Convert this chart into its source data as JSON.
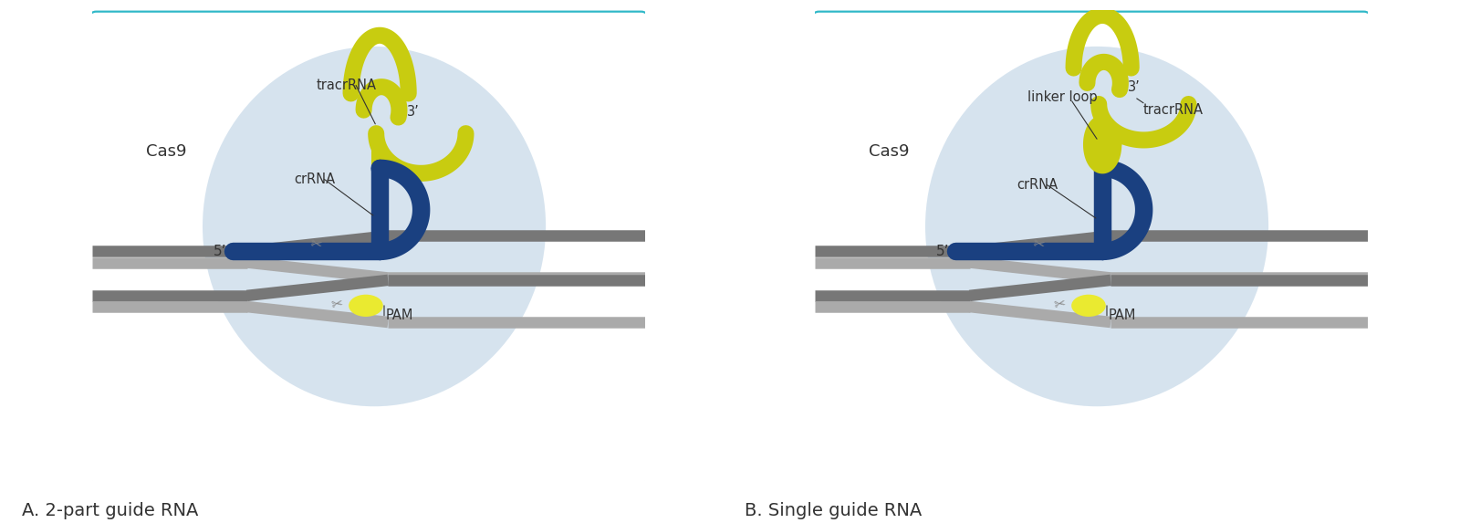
{
  "panel_A_title": "A. 2-part guide RNA",
  "panel_B_title": "B. Single guide RNA",
  "cas9_label": "Cas9",
  "tracr_label_A": "tracrRNA",
  "cr_label_A": "crRNA",
  "five_prime": "5’",
  "three_prime": "3’",
  "pam_label": "PAM",
  "linker_label": "linker loop",
  "tracr_label_B": "tracrRNA",
  "cr_label_B": "crRNA",
  "blob_color": "#c5d8e8",
  "dna_color": "#777777",
  "guide_blue": "#1a4080",
  "tracr_yellow": "#c8cc10",
  "pam_yellow": "#eaea30",
  "border_color": "#30b8c8",
  "text_color": "#333333",
  "background": "#ffffff",
  "label_fontsize": 10.5
}
